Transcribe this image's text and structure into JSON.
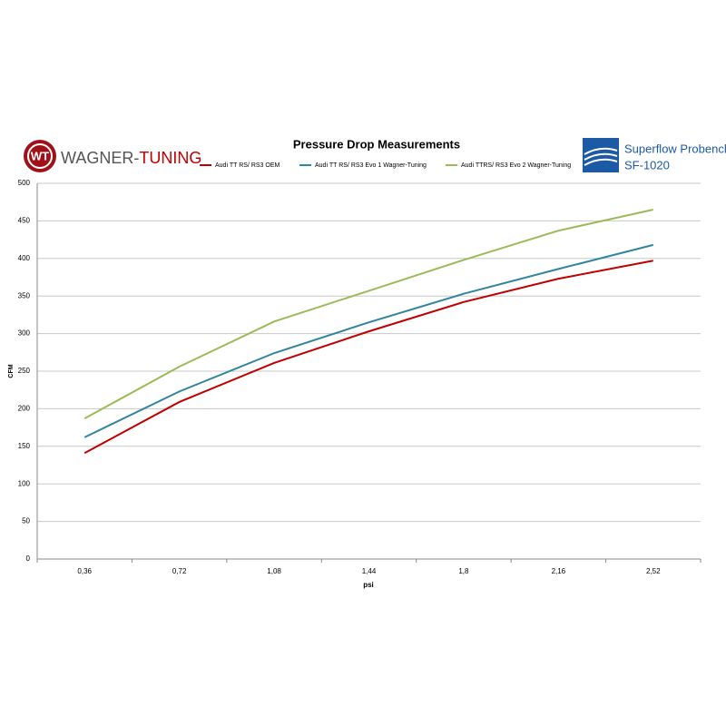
{
  "logos": {
    "left": [
      "WAGNER-",
      "TUNING"
    ],
    "right": [
      "Superflow Probench",
      "SF-1020"
    ]
  },
  "chart_data": {
    "type": "line",
    "title": "Pressure Drop Measurements",
    "x_label": "psi",
    "y_label": "CFM",
    "categories": [
      "0,36",
      "0,72",
      "1,08",
      "1,44",
      "1,8",
      "2,16",
      "2,52"
    ],
    "series": [
      {
        "name": "Audi TT RS/ RS3  OEM",
        "color": "#c00000",
        "values": [
          141,
          209,
          261,
          303,
          342,
          373,
          397
        ]
      },
      {
        "name": "Audi TT RS/ RS3 Evo 1 Wagner-Tuning",
        "color": "#31859c",
        "values": [
          162,
          223,
          274,
          315,
          353,
          386,
          418
        ]
      },
      {
        "name": "Audi TTRS/ RS3 Evo 2 Wagner-Tuning",
        "color": "#9bbb59",
        "values": [
          187,
          256,
          316,
          357,
          398,
          437,
          465
        ]
      }
    ],
    "ylim": [
      0,
      500
    ],
    "yticks": [
      0,
      50,
      100,
      150,
      200,
      250,
      300,
      350,
      400,
      450,
      500
    ],
    "grid": true,
    "legend": "top"
  }
}
